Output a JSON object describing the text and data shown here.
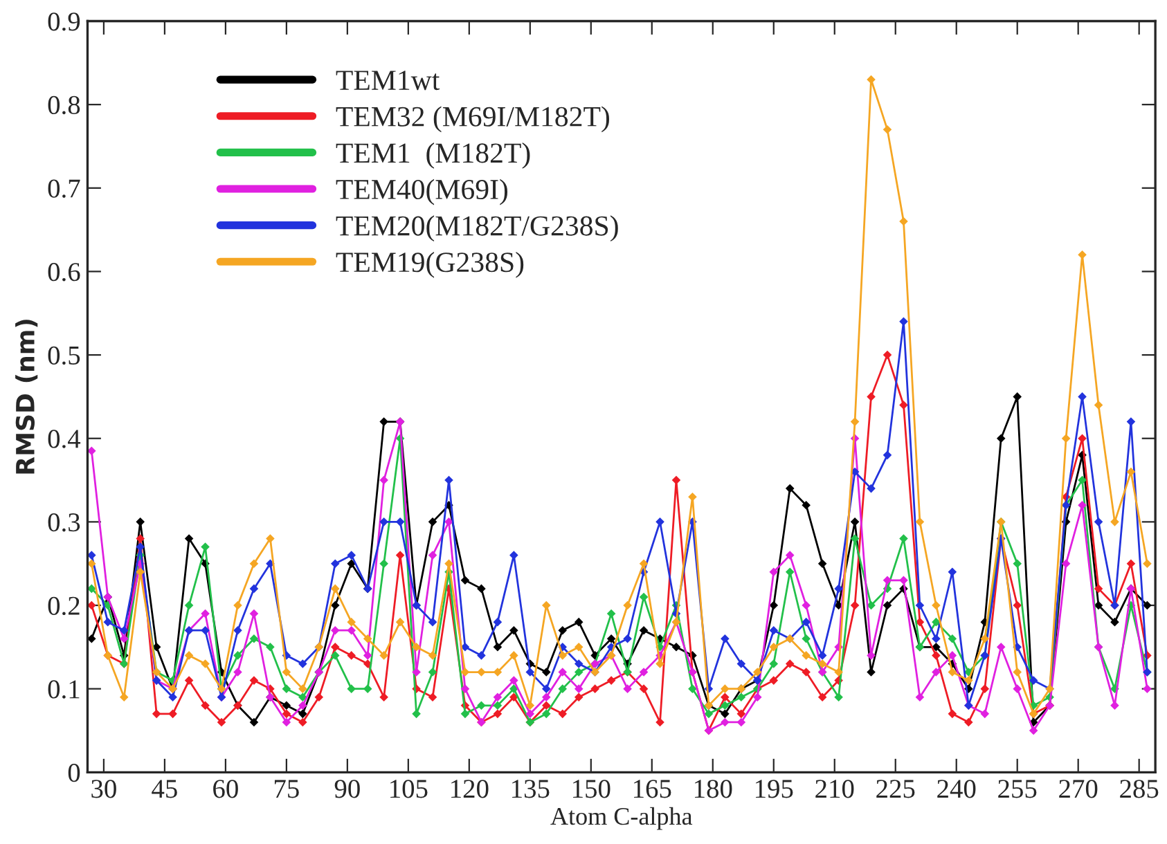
{
  "chart_data": {
    "type": "line",
    "xlabel": "Atom C-alpha",
    "ylabel": "RMSD (nm)",
    "x": [
      27,
      31,
      35,
      39,
      43,
      47,
      51,
      55,
      59,
      63,
      67,
      71,
      75,
      79,
      83,
      87,
      91,
      95,
      99,
      103,
      107,
      111,
      115,
      119,
      123,
      127,
      131,
      135,
      139,
      143,
      147,
      151,
      155,
      159,
      163,
      167,
      171,
      175,
      179,
      183,
      187,
      191,
      195,
      199,
      203,
      207,
      211,
      215,
      219,
      223,
      227,
      231,
      235,
      239,
      243,
      247,
      251,
      255,
      259,
      263,
      267,
      271,
      275,
      279,
      283,
      287
    ],
    "series": [
      {
        "name": "TEM1wt",
        "color": "#000000",
        "values": [
          0.16,
          0.21,
          0.14,
          0.3,
          0.15,
          0.1,
          0.28,
          0.25,
          0.12,
          0.08,
          0.06,
          0.09,
          0.08,
          0.07,
          0.12,
          0.2,
          0.25,
          0.22,
          0.42,
          0.42,
          0.2,
          0.3,
          0.32,
          0.23,
          0.22,
          0.15,
          0.17,
          0.13,
          0.12,
          0.17,
          0.18,
          0.14,
          0.16,
          0.13,
          0.17,
          0.16,
          0.15,
          0.14,
          0.08,
          0.07,
          0.1,
          0.11,
          0.2,
          0.34,
          0.32,
          0.25,
          0.2,
          0.3,
          0.12,
          0.2,
          0.22,
          0.15,
          0.15,
          0.13,
          0.1,
          0.18,
          0.4,
          0.45,
          0.06,
          0.08,
          0.3,
          0.38,
          0.2,
          0.18,
          0.22,
          0.2
        ]
      },
      {
        "name": "TEM32 (M69I/M182T)",
        "color": "#ee1c25",
        "values": [
          0.2,
          0.14,
          0.13,
          0.28,
          0.07,
          0.07,
          0.11,
          0.08,
          0.06,
          0.08,
          0.11,
          0.1,
          0.07,
          0.06,
          0.09,
          0.15,
          0.14,
          0.13,
          0.09,
          0.26,
          0.1,
          0.09,
          0.22,
          0.08,
          0.06,
          0.07,
          0.09,
          0.06,
          0.08,
          0.07,
          0.09,
          0.1,
          0.11,
          0.12,
          0.1,
          0.06,
          0.35,
          0.12,
          0.05,
          0.09,
          0.07,
          0.1,
          0.11,
          0.13,
          0.12,
          0.09,
          0.11,
          0.2,
          0.45,
          0.5,
          0.44,
          0.18,
          0.14,
          0.07,
          0.06,
          0.1,
          0.28,
          0.2,
          0.07,
          0.08,
          0.33,
          0.4,
          0.22,
          0.2,
          0.25,
          0.14
        ]
      },
      {
        "name": "TEM1  (M182T)",
        "color": "#22c04a",
        "values": [
          0.22,
          0.2,
          0.13,
          0.26,
          0.12,
          0.11,
          0.2,
          0.27,
          0.1,
          0.14,
          0.16,
          0.15,
          0.1,
          0.09,
          0.12,
          0.14,
          0.1,
          0.1,
          0.25,
          0.4,
          0.07,
          0.12,
          0.24,
          0.07,
          0.08,
          0.08,
          0.1,
          0.06,
          0.07,
          0.1,
          0.12,
          0.13,
          0.19,
          0.12,
          0.21,
          0.15,
          0.2,
          0.1,
          0.07,
          0.08,
          0.09,
          0.1,
          0.13,
          0.24,
          0.16,
          0.12,
          0.09,
          0.28,
          0.2,
          0.22,
          0.28,
          0.15,
          0.18,
          0.16,
          0.12,
          0.14,
          0.3,
          0.25,
          0.08,
          0.09,
          0.32,
          0.35,
          0.15,
          0.1,
          0.2,
          0.12
        ]
      },
      {
        "name": "TEM40(M69I)",
        "color": "#e020e0",
        "values": [
          0.385,
          0.21,
          0.16,
          0.25,
          0.11,
          0.1,
          0.17,
          0.19,
          0.09,
          0.12,
          0.19,
          0.09,
          0.06,
          0.08,
          0.12,
          0.17,
          0.17,
          0.14,
          0.35,
          0.42,
          0.12,
          0.26,
          0.3,
          0.1,
          0.06,
          0.09,
          0.11,
          0.07,
          0.09,
          0.12,
          0.1,
          0.13,
          0.14,
          0.1,
          0.12,
          0.14,
          0.18,
          0.12,
          0.05,
          0.06,
          0.06,
          0.09,
          0.24,
          0.26,
          0.2,
          0.12,
          0.15,
          0.4,
          0.14,
          0.23,
          0.23,
          0.09,
          0.12,
          0.14,
          0.08,
          0.07,
          0.15,
          0.1,
          0.05,
          0.08,
          0.25,
          0.32,
          0.15,
          0.08,
          0.22,
          0.1
        ]
      },
      {
        "name": "TEM20(M182T/G238S)",
        "color": "#2233dd",
        "values": [
          0.26,
          0.18,
          0.17,
          0.27,
          0.11,
          0.09,
          0.17,
          0.17,
          0.09,
          0.17,
          0.22,
          0.25,
          0.14,
          0.13,
          0.15,
          0.25,
          0.26,
          0.22,
          0.3,
          0.3,
          0.2,
          0.18,
          0.35,
          0.15,
          0.14,
          0.18,
          0.26,
          0.12,
          0.1,
          0.15,
          0.13,
          0.12,
          0.15,
          0.16,
          0.24,
          0.3,
          0.19,
          0.3,
          0.1,
          0.16,
          0.13,
          0.11,
          0.17,
          0.16,
          0.18,
          0.14,
          0.22,
          0.36,
          0.34,
          0.38,
          0.54,
          0.2,
          0.16,
          0.24,
          0.08,
          0.14,
          0.28,
          0.15,
          0.11,
          0.1,
          0.32,
          0.45,
          0.3,
          0.2,
          0.42,
          0.12
        ]
      },
      {
        "name": "TEM19(G238S)",
        "color": "#f5a623",
        "values": [
          0.25,
          0.14,
          0.09,
          0.24,
          0.12,
          0.1,
          0.14,
          0.13,
          0.1,
          0.2,
          0.25,
          0.28,
          0.12,
          0.1,
          0.15,
          0.22,
          0.18,
          0.16,
          0.14,
          0.18,
          0.15,
          0.14,
          0.25,
          0.12,
          0.12,
          0.12,
          0.14,
          0.08,
          0.2,
          0.14,
          0.15,
          0.12,
          0.14,
          0.2,
          0.25,
          0.13,
          0.18,
          0.33,
          0.08,
          0.1,
          0.1,
          0.12,
          0.15,
          0.16,
          0.14,
          0.13,
          0.12,
          0.42,
          0.83,
          0.77,
          0.66,
          0.3,
          0.2,
          0.12,
          0.11,
          0.16,
          0.3,
          0.12,
          0.07,
          0.1,
          0.4,
          0.62,
          0.44,
          0.3,
          0.36,
          0.25
        ]
      }
    ],
    "xlim": [
      26,
      289
    ],
    "xticks": [
      30,
      45,
      60,
      75,
      90,
      105,
      120,
      135,
      150,
      165,
      180,
      195,
      210,
      225,
      240,
      255,
      270,
      285
    ],
    "ylim": [
      0,
      0.9
    ],
    "yticks": [
      0,
      0.1,
      0.2,
      0.3,
      0.4,
      0.5,
      0.6,
      0.7,
      0.8,
      0.9
    ],
    "marker": "diamond",
    "line_style": "solid",
    "grid": false,
    "legend": "top left"
  }
}
